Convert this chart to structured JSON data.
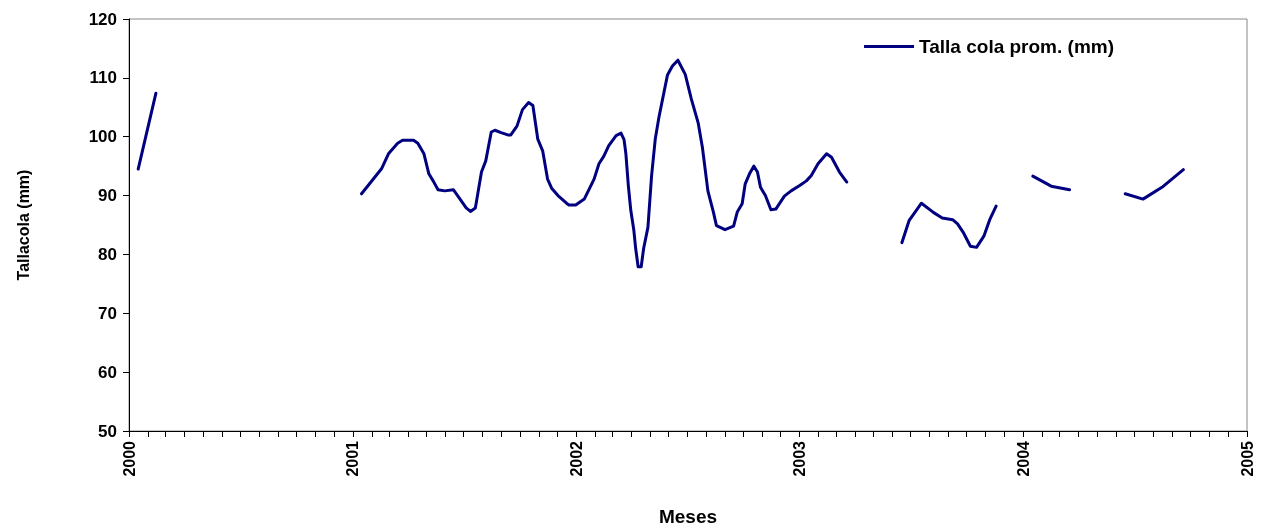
{
  "chart_data": {
    "type": "line",
    "xlabel": "Meses",
    "ylabel": "Tallacola (mm)",
    "x": [
      "2000-01-16",
      "2000-02-14",
      "2000-06-15",
      "2001-01-15",
      "2001-02-17",
      "2001-02-28",
      "2001-03-15",
      "2001-03-23",
      "2001-04-10",
      "2001-04-17",
      "2001-04-27",
      "2001-05-05",
      "2001-05-12",
      "2001-05-20",
      "2001-05-31",
      "2001-06-14",
      "2001-06-25",
      "2001-07-05",
      "2001-07-12",
      "2001-07-20",
      "2001-07-30",
      "2001-08-06",
      "2001-08-15",
      "2001-08-21",
      "2001-08-31",
      "2001-09-11",
      "2001-09-16",
      "2001-09-26",
      "2001-10-05",
      "2001-10-15",
      "2001-10-22",
      "2001-10-30",
      "2001-11-07",
      "2001-11-15",
      "2001-11-22",
      "2001-12-02",
      "2001-12-16",
      "2001-12-20",
      "2001-12-31",
      "2002-01-14",
      "2002-01-30",
      "2002-02-07",
      "2002-02-15",
      "2002-02-23",
      "2002-03-07",
      "2002-03-15",
      "2002-03-20",
      "2002-03-23",
      "2002-03-27",
      "2002-03-31",
      "2002-04-05",
      "2002-04-08",
      "2002-04-12",
      "2002-04-17",
      "2002-04-21",
      "2002-04-28",
      "2002-05-04",
      "2002-05-10",
      "2002-05-16",
      "2002-05-30",
      "2002-06-07",
      "2002-06-16",
      "2002-06-28",
      "2002-07-08",
      "2002-07-19",
      "2002-07-26",
      "2002-08-04",
      "2002-08-13",
      "2002-08-18",
      "2002-09-01",
      "2002-09-15",
      "2002-09-21",
      "2002-09-29",
      "2002-10-04",
      "2002-10-11",
      "2002-10-18",
      "2002-10-24",
      "2002-10-29",
      "2002-11-06",
      "2002-11-15",
      "2002-11-23",
      "2002-12-07",
      "2002-12-18",
      "2003-01-01",
      "2003-01-12",
      "2003-01-20",
      "2003-01-31",
      "2003-02-14",
      "2003-02-22",
      "2003-03-07",
      "2003-03-19",
      "2003-05-01",
      "2003-06-17",
      "2003-06-29",
      "2003-07-19",
      "2003-08-08",
      "2003-08-22",
      "2003-09-08",
      "2003-09-16",
      "2003-09-25",
      "2003-10-07",
      "2003-10-17",
      "2003-10-29",
      "2003-11-08",
      "2003-11-18",
      "2003-12-15",
      "2004-01-17",
      "2004-02-16",
      "2004-03-17",
      "2004-04-15",
      "2004-06-16",
      "2004-07-15",
      "2004-08-15",
      "2004-09-19"
    ],
    "series": [
      {
        "name": "Talla cola prom. (mm)",
        "color": "#000080",
        "values": [
          94.5,
          107.4,
          null,
          90.3,
          94.6,
          97.1,
          98.9,
          99.4,
          99.4,
          98.9,
          97.1,
          93.7,
          92.5,
          91.0,
          90.8,
          91.0,
          89.4,
          87.9,
          87.3,
          87.9,
          94.0,
          95.9,
          100.8,
          101.1,
          100.7,
          100.3,
          100.3,
          101.8,
          104.6,
          105.8,
          105.3,
          99.6,
          97.6,
          92.8,
          91.2,
          90.0,
          88.7,
          88.4,
          88.4,
          89.4,
          92.8,
          95.4,
          96.7,
          98.5,
          100.2,
          100.6,
          99.5,
          97.1,
          91.7,
          87.5,
          84.1,
          81.0,
          77.9,
          77.9,
          81.0,
          84.6,
          93.4,
          99.6,
          103.3,
          110.5,
          112.0,
          113.0,
          110.6,
          106.4,
          102.4,
          98.2,
          90.8,
          87.2,
          84.9,
          84.2,
          84.8,
          87.2,
          88.6,
          92.0,
          93.7,
          95.0,
          94.0,
          91.4,
          90.0,
          87.6,
          87.7,
          89.9,
          90.8,
          91.7,
          92.5,
          93.4,
          95.4,
          97.1,
          96.5,
          94.0,
          92.3,
          null,
          82.0,
          85.8,
          88.7,
          87.1,
          86.2,
          85.9,
          85.2,
          83.8,
          81.4,
          81.2,
          83.1,
          86.0,
          88.2,
          null,
          93.3,
          91.6,
          91.0,
          null,
          90.3,
          89.4,
          91.4,
          94.4
        ]
      }
    ],
    "xlim": [
      "2000-01",
      "2005-01"
    ],
    "xticks": [
      "2000",
      {
        "value": "2000-02",
        "label": null
      },
      {
        "value": "2000-03",
        "label": null
      },
      {
        "value": "2000-04",
        "label": null
      },
      {
        "value": "2000-05",
        "label": null
      },
      {
        "value": "2000-06",
        "label": null
      },
      {
        "value": "2000-07",
        "label": null
      },
      {
        "value": "2000-08",
        "label": null
      },
      {
        "value": "2000-09",
        "label": null
      },
      {
        "value": "2000-10",
        "label": null
      },
      {
        "value": "2000-11",
        "label": null
      },
      {
        "value": "2000-12",
        "label": null
      },
      "2001",
      {
        "value": "2001-02",
        "label": null
      },
      {
        "value": "2001-03",
        "label": null
      },
      {
        "value": "2001-04",
        "label": null
      },
      {
        "value": "2001-05",
        "label": null
      },
      {
        "value": "2001-06",
        "label": null
      },
      {
        "value": "2001-07",
        "label": null
      },
      {
        "value": "2001-08",
        "label": null
      },
      {
        "value": "2001-09",
        "label": null
      },
      {
        "value": "2001-10",
        "label": null
      },
      {
        "value": "2001-11",
        "label": null
      },
      {
        "value": "2001-12",
        "label": null
      },
      "2002",
      {
        "value": "2002-02",
        "label": null
      },
      {
        "value": "2002-03",
        "label": null
      },
      {
        "value": "2002-04",
        "label": null
      },
      {
        "value": "2002-05",
        "label": null
      },
      {
        "value": "2002-06",
        "label": null
      },
      {
        "value": "2002-07",
        "label": null
      },
      {
        "value": "2002-08",
        "label": null
      },
      {
        "value": "2002-09",
        "label": null
      },
      {
        "value": "2002-10",
        "label": null
      },
      {
        "value": "2002-11",
        "label": null
      },
      {
        "value": "2002-12",
        "label": null
      },
      "2003",
      {
        "value": "2003-02",
        "label": null
      },
      {
        "value": "2003-03",
        "label": null
      },
      {
        "value": "2003-04",
        "label": null
      },
      {
        "value": "2003-05",
        "label": null
      },
      {
        "value": "2003-06",
        "label": null
      },
      {
        "value": "2003-07",
        "label": null
      },
      {
        "value": "2003-08",
        "label": null
      },
      {
        "value": "2003-09",
        "label": null
      },
      {
        "value": "2003-10",
        "label": null
      },
      {
        "value": "2003-11",
        "label": null
      },
      {
        "value": "2003-12",
        "label": null
      },
      "2004",
      {
        "value": "2004-02",
        "label": null
      },
      {
        "value": "2004-03",
        "label": null
      },
      {
        "value": "2004-04",
        "label": null
      },
      {
        "value": "2004-05",
        "label": null
      },
      {
        "value": "2004-06",
        "label": null
      },
      {
        "value": "2004-07",
        "label": null
      },
      {
        "value": "2004-08",
        "label": null
      },
      {
        "value": "2004-09",
        "label": null
      },
      {
        "value": "2004-10",
        "label": null
      },
      {
        "value": "2004-11",
        "label": null
      },
      {
        "value": "2004-12",
        "label": null
      },
      "2005"
    ],
    "ylim": [
      50,
      120
    ],
    "yticks": [
      50,
      60,
      70,
      80,
      90,
      100,
      110,
      120
    ],
    "grid": false,
    "legend": "top right",
    "marker": "none",
    "line_style": "solid"
  }
}
